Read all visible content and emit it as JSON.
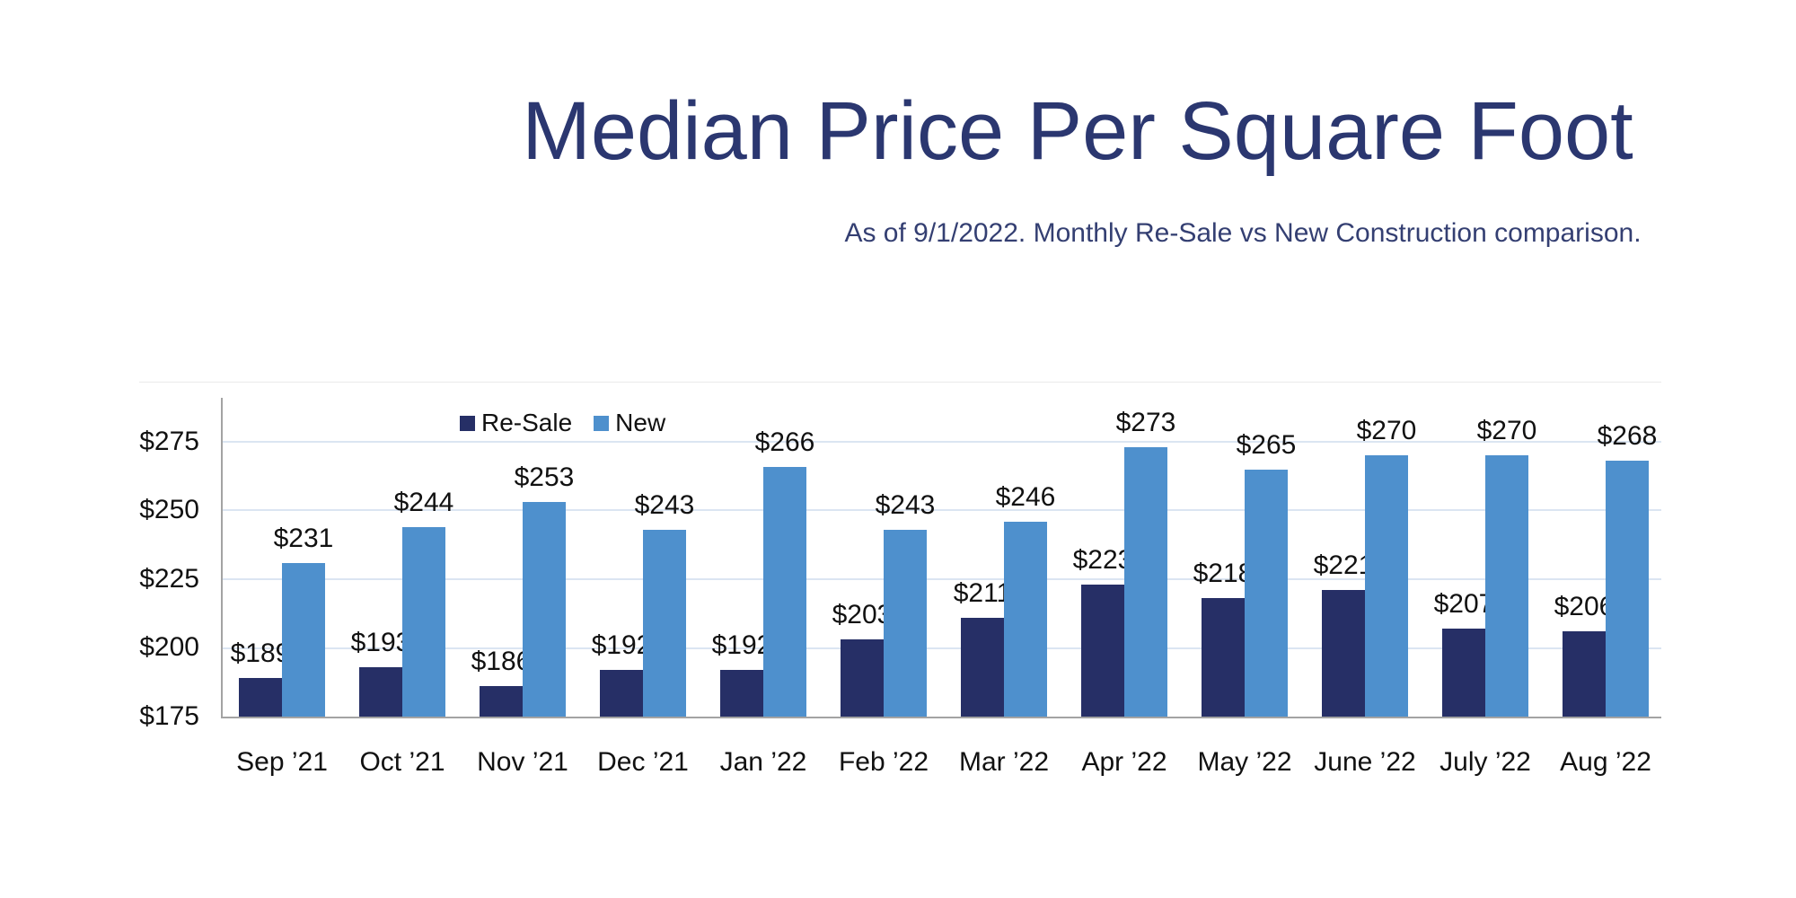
{
  "title": "Median Price Per Square Foot",
  "subtitle": "As of 9/1/2022. Monthly Re-Sale vs New Construction comparison.",
  "chart_data": {
    "type": "bar",
    "title": "Median Price Per Square Foot",
    "subtitle": "As of 9/1/2022. Monthly Re-Sale vs New Construction comparison.",
    "categories": [
      "Sep ’21",
      "Oct ’21",
      "Nov ’21",
      "Dec ’21",
      "Jan ’22",
      "Feb ’22",
      "Mar ’22",
      "Apr ’22",
      "May ’22",
      "June ’22",
      "July ’22",
      "Aug ’22"
    ],
    "series": [
      {
        "name": "Re-Sale",
        "color": "#262f66",
        "values": [
          189,
          193,
          186,
          192,
          192,
          203,
          211,
          223,
          218,
          221,
          207,
          206
        ],
        "labels": [
          "$189",
          "$193",
          "$186",
          "$192",
          "$192",
          "$203",
          "$211",
          "$223",
          "$218",
          "$221",
          "$207",
          "$206"
        ]
      },
      {
        "name": "New",
        "color": "#4e90cd",
        "values": [
          231,
          244,
          253,
          243,
          266,
          243,
          246,
          273,
          265,
          270,
          270,
          268
        ],
        "labels": [
          "$231",
          "$244",
          "$253",
          "$243",
          "$266",
          "$243",
          "$246",
          "$273",
          "$265",
          "$270",
          "$270",
          "$268"
        ]
      }
    ],
    "value_prefix": "$",
    "y_tick_values": [
      275,
      250,
      225,
      200,
      175
    ],
    "y_tick_labels": [
      "$275",
      "$250",
      "$225",
      "$200",
      "$175"
    ],
    "gridline_values": [
      200,
      225,
      250,
      275
    ],
    "ylim": [
      175,
      291
    ],
    "grid": true,
    "legend_position": "inside-top-left",
    "data_labels": true
  },
  "colors": {
    "title_text": "#2b3770",
    "subtitle_text": "#343f72",
    "resale_bar": "#262f66",
    "new_bar": "#4e90cd",
    "axis_line": "#a3a3a3",
    "gridline": "#dbe5f2",
    "label_text": "#111111",
    "background": "#ffffff"
  }
}
